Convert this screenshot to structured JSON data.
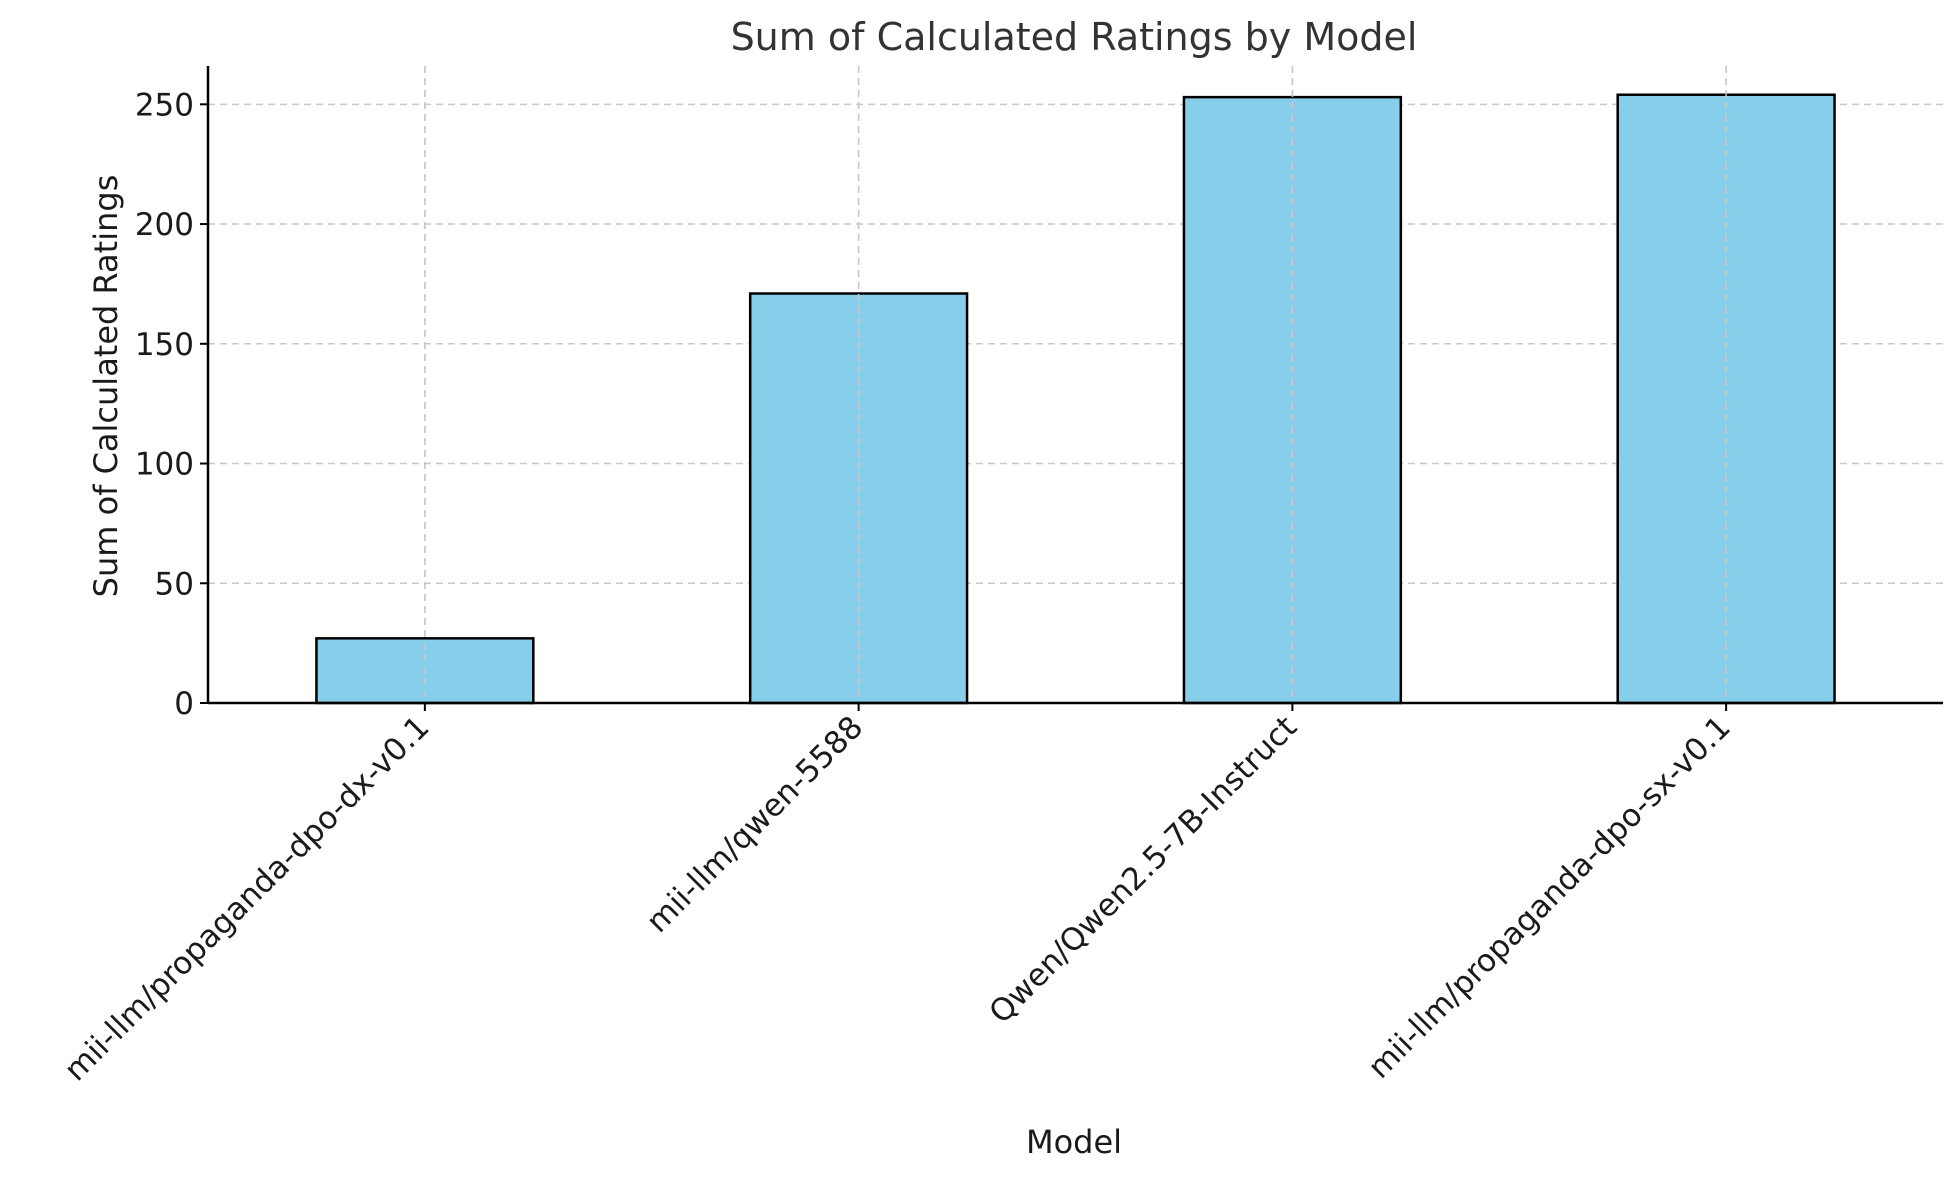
{
  "chart_data": {
    "type": "bar",
    "title": "Sum of Calculated Ratings by Model",
    "xlabel": "Model",
    "ylabel": "Sum of Calculated Ratings",
    "categories": [
      "mii-llm/propaganda-dpo-dx-v0.1",
      "mii-llm/qwen-5588",
      "Qwen/Qwen2.5-7B-Instruct",
      "mii-llm/propaganda-dpo-sx-v0.1"
    ],
    "values": [
      27,
      171,
      253,
      254
    ],
    "ylim": [
      0,
      266
    ],
    "yticks": [
      0,
      50,
      100,
      150,
      200,
      250
    ],
    "bar_color": "#87CEEB",
    "bar_edge_color": "#000000",
    "grid": true
  }
}
